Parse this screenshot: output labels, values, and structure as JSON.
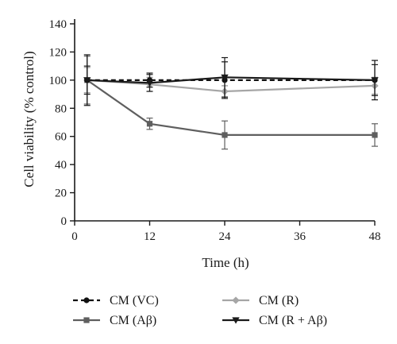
{
  "chart_data": {
    "type": "line",
    "xlabel": "Time (h)",
    "ylabel": "Cell viability (% control)",
    "xlim": [
      0,
      48
    ],
    "ylim": [
      0,
      140
    ],
    "xticks": [
      "0",
      "12",
      "24",
      "36",
      "48"
    ],
    "yticks": [
      "0",
      "20",
      "40",
      "60",
      "80",
      "100",
      "120",
      "140"
    ],
    "grid": false,
    "legend_position": "bottom",
    "series": [
      {
        "name": "CM (VC)",
        "color": "#111111",
        "line_style": "dashed",
        "marker": "circle",
        "x": [
          2,
          12,
          24,
          48
        ],
        "values": [
          100,
          100,
          100,
          100
        ],
        "errors": [
          18,
          5,
          13,
          14
        ]
      },
      {
        "name": "CM (R)",
        "color": "#a6a6a6",
        "line_style": "solid",
        "marker": "diamond",
        "x": [
          2,
          12,
          24,
          48
        ],
        "values": [
          100,
          97,
          92,
          96
        ],
        "errors": [
          9,
          5,
          4,
          6
        ]
      },
      {
        "name": "CM (Aβ)",
        "color": "#5f5f5f",
        "line_style": "solid",
        "marker": "square",
        "x": [
          2,
          12,
          24,
          48
        ],
        "values": [
          100,
          69,
          61,
          61
        ],
        "errors": [
          17,
          4,
          10,
          8
        ]
      },
      {
        "name": "CM (R + Aβ)",
        "color": "#1a1a1a",
        "line_style": "solid",
        "marker": "triangle-down",
        "x": [
          2,
          12,
          24,
          48
        ],
        "values": [
          100,
          98,
          102,
          100
        ],
        "errors": [
          10,
          6,
          14,
          11
        ]
      }
    ]
  }
}
